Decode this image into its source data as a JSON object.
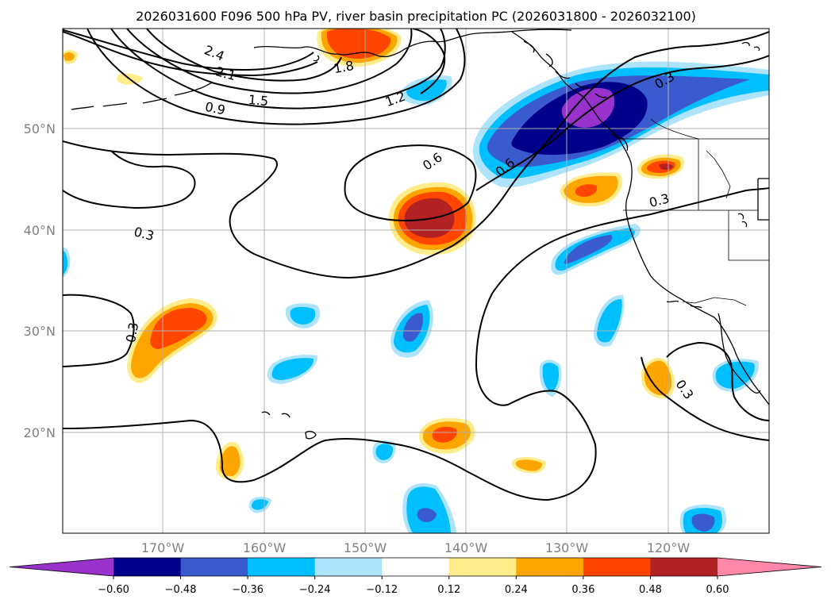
{
  "title": "2026031600 F096 500 hPa PV, river basin precipitation PC (2026031800 - 2026032100)",
  "lon_labels": [
    "170°W",
    "160°W",
    "150°W",
    "140°W",
    "130°W",
    "120°W"
  ],
  "lat_labels": [
    "50°N",
    "40°N",
    "30°N",
    "20°N"
  ],
  "colorbar": {
    "tick_labels": [
      "−0.60",
      "−0.48",
      "−0.36",
      "−0.24",
      "−0.12",
      "0.12",
      "0.24",
      "0.36",
      "0.48",
      "0.60"
    ],
    "colors": [
      "#9932cc",
      "#00008b",
      "#3a5bcd",
      "#00bfff",
      "#ade4fb",
      "#ffffff",
      "#ffec8b",
      "#ffa500",
      "#ff4500",
      "#b22222",
      "#ff88aa"
    ]
  },
  "contour_labels": [
    "2.4",
    "2.1",
    "1.8",
    "1.5",
    "1.2",
    "0.9",
    "0.6",
    "0.6",
    "0.3",
    "0.3",
    "0.3",
    "0.3",
    "0.3"
  ]
}
